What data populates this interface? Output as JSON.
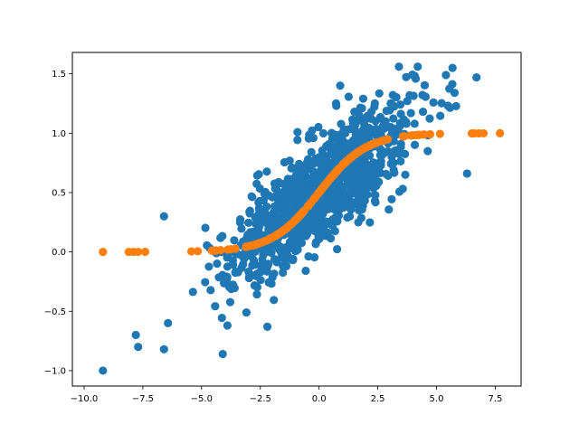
{
  "chart_data": {
    "type": "scatter",
    "title": "",
    "xlabel": "",
    "ylabel": "",
    "xlim": [
      -10.5,
      8.6
    ],
    "ylim": [
      -1.13,
      1.68
    ],
    "grid": false,
    "legend": "none",
    "xticks": [
      -10.0,
      -7.5,
      -5.0,
      -2.5,
      0.0,
      2.5,
      5.0,
      7.5
    ],
    "xtick_labels": [
      "−10.0",
      "−7.5",
      "−5.0",
      "−2.5",
      "0.0",
      "2.5",
      "5.0",
      "7.5"
    ],
    "yticks": [
      -1.0,
      -0.5,
      0.0,
      0.5,
      1.0,
      1.5
    ],
    "ytick_labels": [
      "−1.0",
      "−0.5",
      "0.0",
      "0.5",
      "1.0",
      "1.5"
    ],
    "series": [
      {
        "color": "#1f77b4",
        "kind": "noisy-linear-scatter",
        "point_count": 1000,
        "relation": "y ≈ 0.5 + 0.15·x with noise",
        "outliers": [
          {
            "x": -9.2,
            "y": -1.0
          },
          {
            "x": -7.8,
            "y": -0.7
          },
          {
            "x": -7.7,
            "y": -0.8
          },
          {
            "x": -6.6,
            "y": -0.82
          },
          {
            "x": -4.1,
            "y": -0.86
          },
          {
            "x": -3.9,
            "y": -0.62
          },
          {
            "x": -2.2,
            "y": -0.63
          },
          {
            "x": -6.6,
            "y": 0.3
          },
          {
            "x": 0.9,
            "y": 1.4
          },
          {
            "x": 3.4,
            "y": 1.56
          },
          {
            "x": 4.2,
            "y": 1.56
          },
          {
            "x": 6.7,
            "y": 1.47
          },
          {
            "x": 6.3,
            "y": 0.66
          },
          {
            "x": 5.4,
            "y": 1.49
          }
        ]
      },
      {
        "color": "#ff7f0e",
        "kind": "sigmoid-fit",
        "relation": "y = 1 / (1 + e^-(x - x0))",
        "x0": 0.0,
        "x_min": -9.2,
        "x_max": 7.7,
        "point_count": 200
      }
    ]
  }
}
